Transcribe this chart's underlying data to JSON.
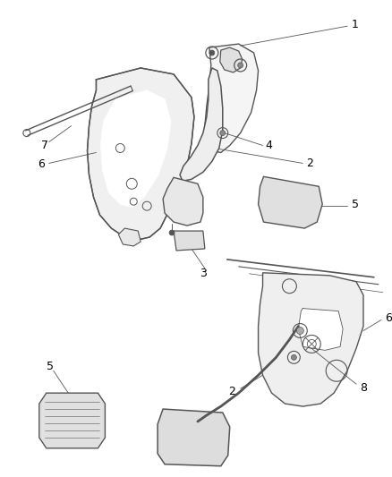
{
  "background_color": "#ffffff",
  "line_color": "#555555",
  "label_color": "#000000",
  "figsize": [
    4.38,
    5.33
  ],
  "dpi": 100
}
